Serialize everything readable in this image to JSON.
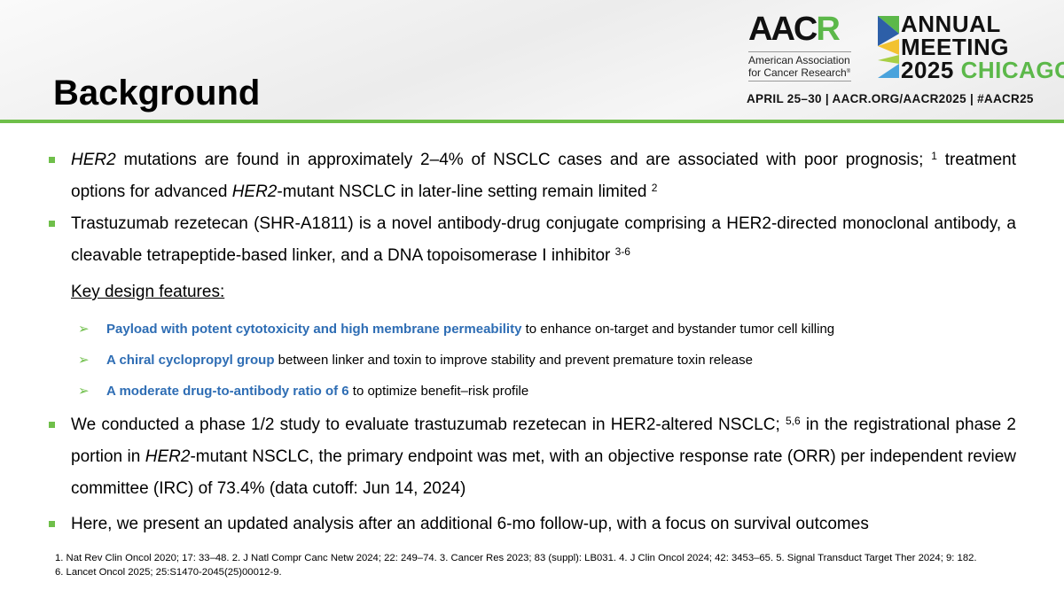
{
  "header": {
    "title": "Background",
    "logo": {
      "org": "AACR",
      "org_name_line1": "American Association",
      "org_name_line2": "for Cancer Research",
      "event_line1": "ANNUAL",
      "event_line2": "MEETING",
      "year": "2025",
      "city": "CHICAGO",
      "info": "APRIL 25–30 | AACR.ORG/AACR2025 | #AACR25"
    }
  },
  "bullets": [
    {
      "p1_i": "HER2",
      "p2": " mutations are found in approximately 2–4% of NSCLC cases and are associated with poor prognosis; ",
      "s1": "1",
      "p3": " treatment options for advanced ",
      "p4_i": "HER2",
      "p5": "-mutant NSCLC in later-line setting remain limited ",
      "s2": "2"
    },
    {
      "p1": "Trastuzumab rezetecan (SHR-A1811) is a novel antibody-drug conjugate comprising a HER2-directed monoclonal antibody, a cleavable tetrapeptide-based linker, and a DNA topoisomerase I inhibitor ",
      "s1": "3-6"
    },
    {
      "p1": "We conducted a phase 1/2 study to evaluate trastuzumab rezetecan in HER2-altered NSCLC; ",
      "s1": "5,6",
      "p2": " in the registrational phase 2 portion in ",
      "p3_i": "HER2",
      "p4": "-mutant NSCLC, the primary endpoint was met, with an objective response rate (ORR) per independent review committee (IRC) of 73.4% (data cutoff: Jun 14, 2024)"
    },
    {
      "p1": "Here, we present an updated analysis after an additional 6-mo follow-up, with a focus on survival outcomes"
    }
  ],
  "key_design": {
    "heading": "Key design features:",
    "items": [
      {
        "highlight": "Payload with potent cytotoxicity and high membrane permeability",
        "rest": " to enhance on-target and bystander tumor cell killing"
      },
      {
        "highlight": "A chiral cyclopropyl group",
        "rest": " between linker and toxin to improve stability and prevent premature toxin release"
      },
      {
        "highlight": "A moderate drug-to-antibody ratio of 6",
        "rest": " to optimize benefit–risk profile"
      }
    ]
  },
  "footnotes": {
    "line1": "1. Nat Rev Clin Oncol 2020; 17: 33–48.  2. J Natl Compr Canc Netw 2024; 22: 249–74.  3. Cancer Res 2023; 83 (suppl): LB031.   4. J Clin Oncol 2024; 42: 3453–65.   5. Signal Transduct Target Ther 2024; 9: 182.",
    "line2": "6. Lancet Oncol 2025; 25:S1470-2045(25)00012-9."
  },
  "colors": {
    "accent_green": "#6fbf4a",
    "highlight_blue": "#2e6db4"
  }
}
